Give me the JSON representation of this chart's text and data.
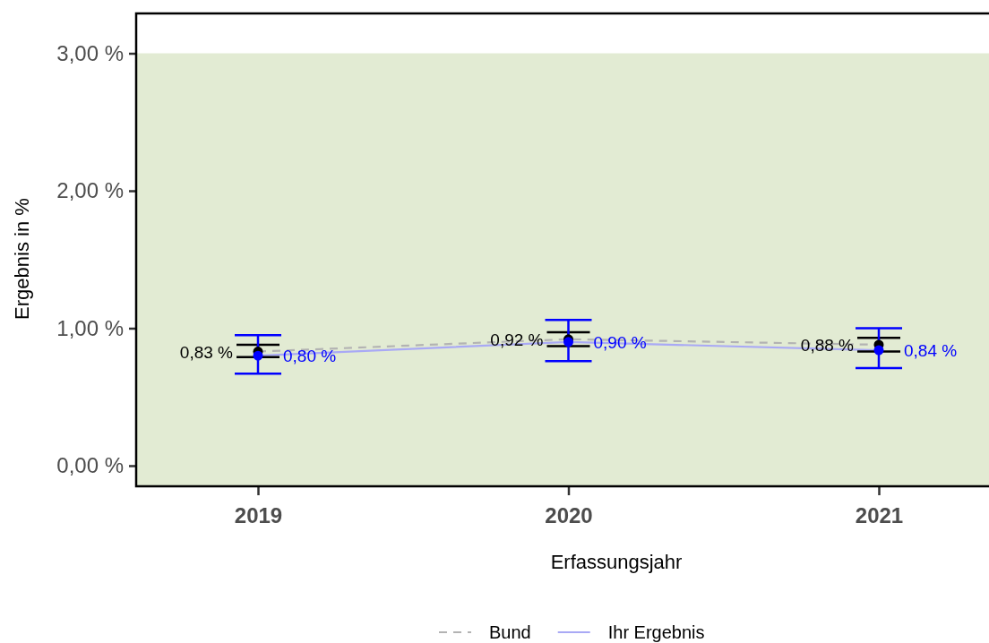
{
  "chart_data": {
    "type": "line",
    "xlabel": "Erfassungsjahr",
    "ylabel": "Ergebnis in %",
    "categories": [
      "2019",
      "2020",
      "2021"
    ],
    "series": [
      {
        "name": "Bund",
        "color": "#b3b3b3",
        "line_style": "dashed",
        "colors": [
          "#000000",
          "#000000",
          "#000000"
        ],
        "values": [
          0.83,
          0.92,
          0.88
        ],
        "errors": [
          [
            0.79,
            0.88
          ],
          [
            0.87,
            0.97
          ],
          [
            0.83,
            0.93
          ]
        ],
        "value_labels": [
          "0,83 %",
          "0,92 %",
          "0,88 %"
        ]
      },
      {
        "name": "Ihr Ergebnis",
        "color": "#a9a9f5",
        "line_style": "solid",
        "colors": [
          "#0000ff",
          "#0000ff",
          "#0000ff"
        ],
        "values": [
          0.8,
          0.9,
          0.84
        ],
        "errors": [
          [
            0.67,
            0.95
          ],
          [
            0.76,
            1.06
          ],
          [
            0.71,
            1.0
          ]
        ],
        "value_labels": [
          "0,80 %",
          "0,90 %",
          "0,84 %"
        ]
      }
    ],
    "ylim": [
      -0.15,
      3.29
    ],
    "yticks": [
      {
        "value": 0,
        "label": "0,00 %"
      },
      {
        "value": 1,
        "label": "1,00 %"
      },
      {
        "value": 2,
        "label": "2,00 %"
      },
      {
        "value": 3,
        "label": "3,00 %"
      }
    ],
    "bands": [
      {
        "axis": "y",
        "from": -0.15,
        "to": 3,
        "color": "#e2ebd3"
      }
    ],
    "marker": "circle",
    "grid": false,
    "legend": "bottom"
  }
}
